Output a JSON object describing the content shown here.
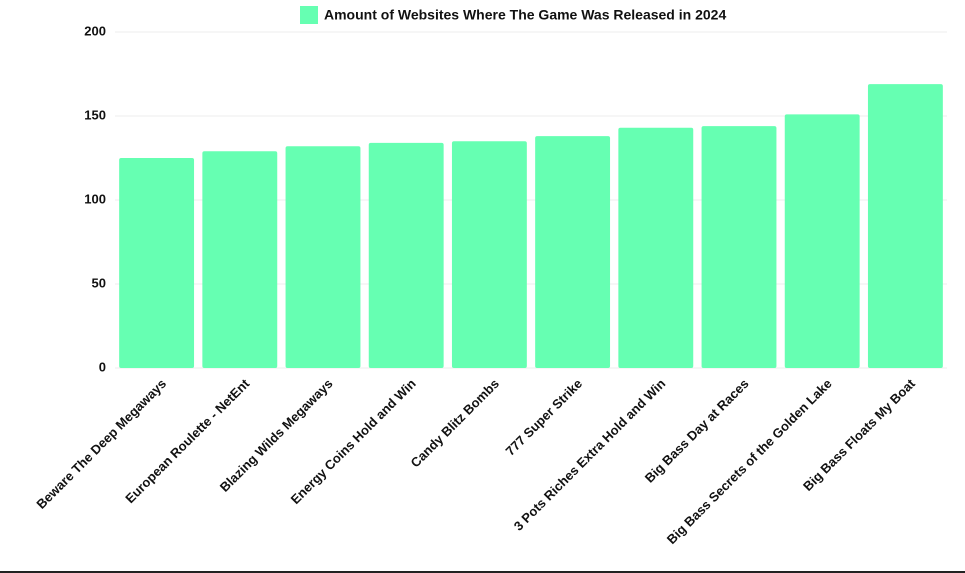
{
  "chart_data": {
    "type": "bar",
    "categories": [
      "Beware The Deep Megaways",
      "European Roulette - NetEnt",
      "Blazing Wilds Megaways",
      "Energy Coins Hold and Win",
      "Candy Blitz Bombs",
      "777 Super Strike",
      "3 Pots Riches Extra Hold and Win",
      "Big Bass Day at Races",
      "Big Bass Secrets of the Golden Lake",
      "Big Bass Floats My Boat"
    ],
    "series": [
      {
        "name": "Amount of Websites Where The Game Was Released in 2024",
        "color": "#66ffb2",
        "values": [
          125,
          129,
          132,
          134,
          135,
          138,
          143,
          144,
          151,
          169
        ]
      }
    ],
    "ylim": [
      0,
      200
    ],
    "yticks": [
      0,
      50,
      100,
      150,
      200
    ],
    "grid": true,
    "legend": "top"
  }
}
